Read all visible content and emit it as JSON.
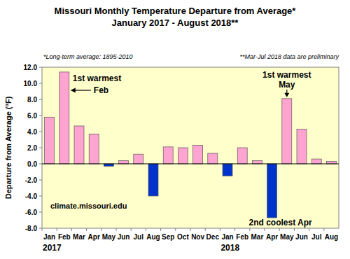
{
  "chart_data": {
    "type": "bar",
    "title": "Missouri Monthly Temperature Departure from Average*",
    "subtitle": "January 2017 - August 2018**",
    "notes": [
      "*Long-term average: 1895-2010",
      "**Mar-Jul 2018 data are preliminary"
    ],
    "y_label": "Departure from Average (°F)",
    "categories": [
      "Jan",
      "Feb",
      "Mar",
      "Apr",
      "May",
      "Jun",
      "Jul",
      "Aug",
      "Sep",
      "Oct",
      "Nov",
      "Dec",
      "Jan",
      "Feb",
      "Mar",
      "Apr",
      "May",
      "Jun",
      "Jul",
      "Aug"
    ],
    "year_labels": [
      "2017",
      "2018"
    ],
    "values": [
      5.8,
      11.4,
      4.7,
      3.7,
      -0.3,
      0.4,
      1.2,
      -4.0,
      2.1,
      2.0,
      2.3,
      1.3,
      -1.5,
      2.0,
      0.4,
      -6.7,
      8.1,
      4.3,
      0.6,
      0.3
    ],
    "colors": [
      "#FFA3D1",
      "#FFA3D1",
      "#FFA3D1",
      "#FFA3D1",
      "#0033CC",
      "#FFA3D1",
      "#FFA3D1",
      "#0033CC",
      "#FFA3D1",
      "#FFA3D1",
      "#FFA3D1",
      "#FFA3D1",
      "#0033CC",
      "#FFA3D1",
      "#FFA3D1",
      "#0033CC",
      "#FFA3D1",
      "#FFA3D1",
      "#FFA3D1",
      "#FFA3D1"
    ],
    "ylim": [
      -8,
      12
    ],
    "yticks": [
      {
        "value": -8,
        "label": "-8.0"
      },
      {
        "value": -6,
        "label": "-6.0"
      },
      {
        "value": -4,
        "label": "-4.0"
      },
      {
        "value": -2,
        "label": "-2.0"
      },
      {
        "value": 0,
        "label": "0.0"
      },
      {
        "value": 2,
        "label": "2.0"
      },
      {
        "value": 4,
        "label": "4.0"
      },
      {
        "value": 6,
        "label": "6.0"
      },
      {
        "value": 8,
        "label": "8.0"
      },
      {
        "value": 10,
        "label": "10.0"
      },
      {
        "value": 12,
        "label": "12.0"
      }
    ],
    "grid": false,
    "annotations": [
      "1st warmest",
      "Feb",
      "1st warmest",
      "May",
      "2nd coolest Apr",
      "climate.missouri.edu"
    ]
  }
}
